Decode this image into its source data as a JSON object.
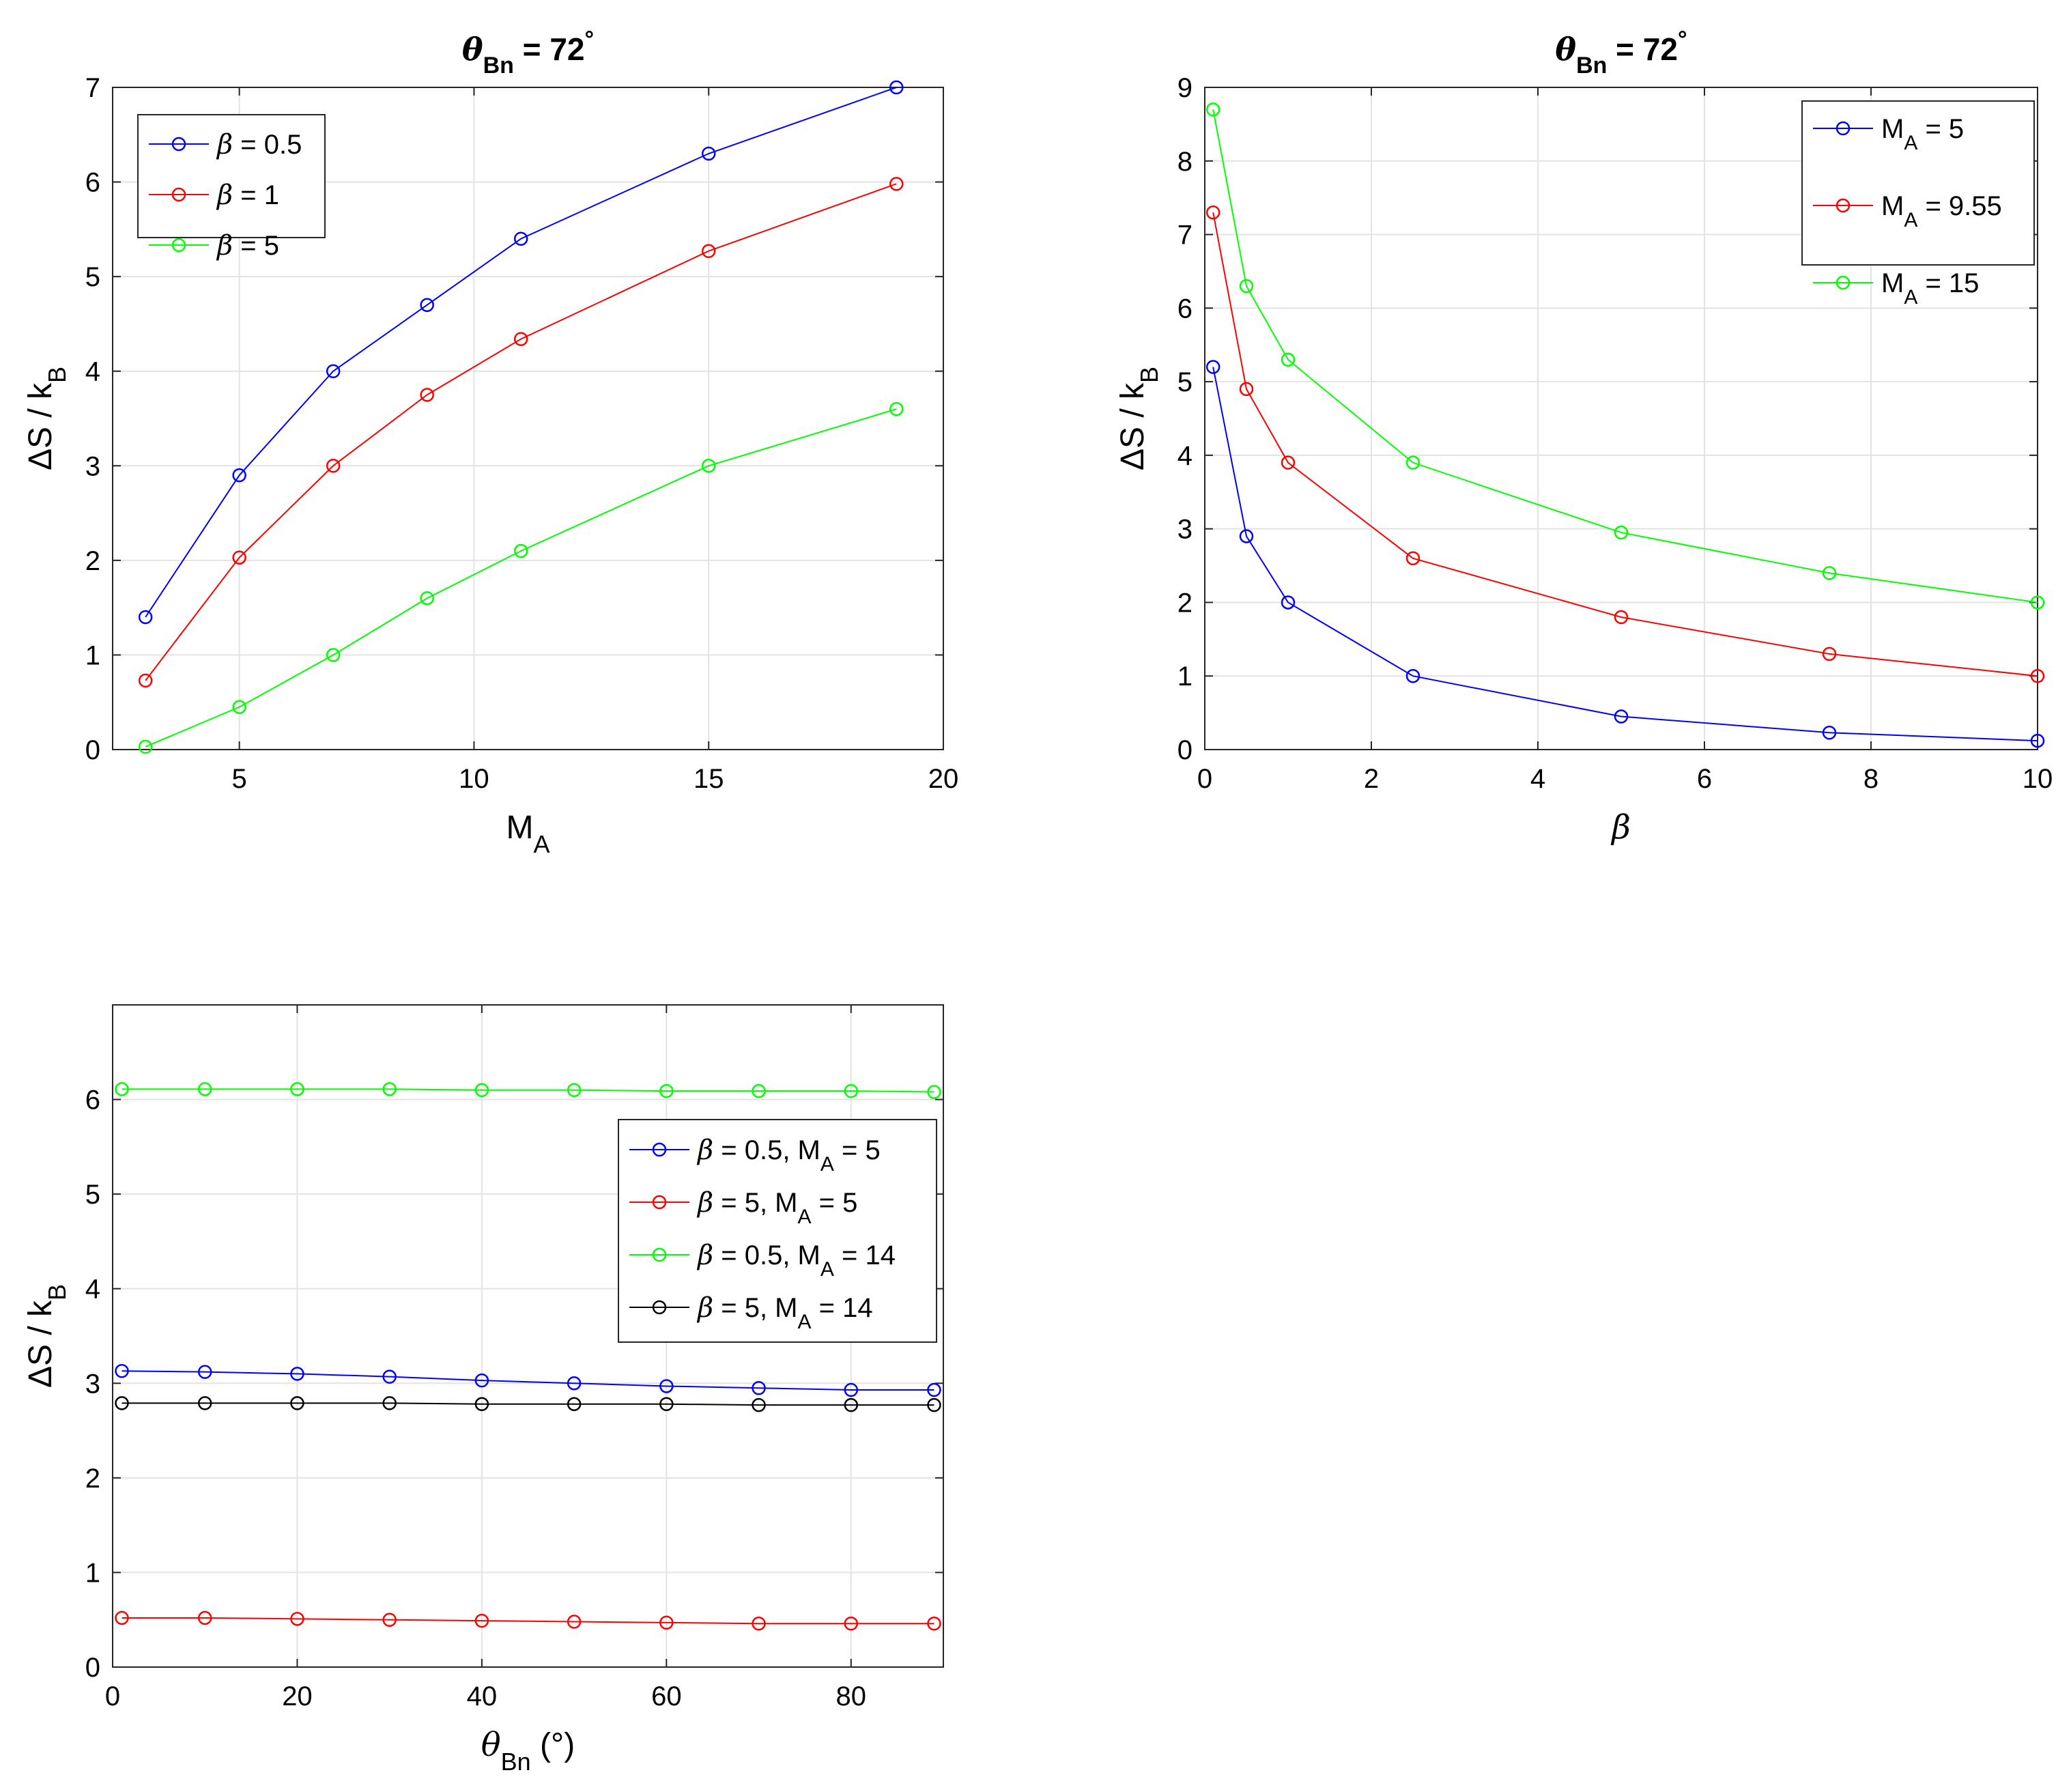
{
  "chart_data": [
    {
      "type": "line",
      "title": "θBn = 72°",
      "title_parts": {
        "symbol": "θ",
        "sub": "Bn",
        "rest": " = 72",
        "sup": "°"
      },
      "xlabel": {
        "main": "M",
        "sub": "A"
      },
      "ylabel": {
        "main": "ΔS / k",
        "sub": "B"
      },
      "xlim": [
        2.3,
        20
      ],
      "ylim": [
        0,
        7
      ],
      "xticks": [
        5,
        10,
        15,
        20
      ],
      "yticks": [
        0,
        1,
        2,
        3,
        4,
        5,
        6,
        7
      ],
      "grid": true,
      "legend_position": "top-left",
      "series": [
        {
          "name": "β = 0.5",
          "label": {
            "sym": "β",
            "rest": " = 0.5"
          },
          "color": "#0000ff",
          "x": [
            3,
            5,
            7,
            9,
            11,
            15,
            19
          ],
          "y": [
            1.4,
            2.9,
            4.0,
            4.7,
            5.4,
            6.3,
            7.0
          ]
        },
        {
          "name": "β = 1",
          "label": {
            "sym": "β",
            "rest": " = 1"
          },
          "color": "#ff0000",
          "x": [
            3,
            5,
            7,
            9,
            11,
            15,
            19
          ],
          "y": [
            0.73,
            2.03,
            3.0,
            3.75,
            4.34,
            5.27,
            5.98
          ]
        },
        {
          "name": "β = 5",
          "label": {
            "sym": "β",
            "rest": " = 5"
          },
          "color": "#00ff00",
          "x": [
            3,
            5,
            7,
            9,
            11,
            15,
            19
          ],
          "y": [
            0.03,
            0.45,
            1.0,
            1.6,
            2.1,
            3.0,
            3.6
          ]
        }
      ]
    },
    {
      "type": "line",
      "title": "θBn = 72°",
      "title_parts": {
        "symbol": "θ",
        "sub": "Bn",
        "rest": " = 72",
        "sup": "°"
      },
      "xlabel": {
        "main": "β",
        "sub": ""
      },
      "ylabel": {
        "main": "ΔS / k",
        "sub": "B"
      },
      "xlim": [
        0,
        10
      ],
      "ylim": [
        0,
        9
      ],
      "xticks": [
        0,
        2,
        4,
        6,
        8,
        10
      ],
      "yticks": [
        0,
        1,
        2,
        3,
        4,
        5,
        6,
        7,
        8,
        9
      ],
      "grid": true,
      "legend_position": "top-right",
      "series": [
        {
          "name": "MA = 5",
          "label": {
            "pre": "M",
            "sub": "A",
            "rest": " = 5"
          },
          "color": "#0000ff",
          "x": [
            0.1,
            0.5,
            1,
            2.5,
            5,
            7.5,
            10
          ],
          "y": [
            5.2,
            2.9,
            2.0,
            1.0,
            0.45,
            0.23,
            0.12
          ]
        },
        {
          "name": "MA = 9.55",
          "label": {
            "pre": "M",
            "sub": "A",
            "rest": " = 9.55"
          },
          "color": "#ff0000",
          "x": [
            0.1,
            0.5,
            1,
            2.5,
            5,
            7.5,
            10
          ],
          "y": [
            7.3,
            4.9,
            3.9,
            2.6,
            1.8,
            1.3,
            1.0
          ]
        },
        {
          "name": "MA = 15",
          "label": {
            "pre": "M",
            "sub": "A",
            "rest": " = 15"
          },
          "color": "#00ff00",
          "x": [
            0.1,
            0.5,
            1,
            2.5,
            5,
            7.5,
            10
          ],
          "y": [
            8.7,
            6.3,
            5.3,
            3.9,
            2.95,
            2.4,
            2.0
          ]
        }
      ]
    },
    {
      "type": "line",
      "title": "",
      "xlabel": {
        "main": "θ",
        "sub": "Bn",
        "rest": " (°)"
      },
      "ylabel": {
        "main": "ΔS / k",
        "sub": "B"
      },
      "xlim": [
        0,
        90
      ],
      "ylim": [
        0,
        7
      ],
      "xticks": [
        0,
        20,
        40,
        60,
        80
      ],
      "yticks": [
        0,
        1,
        2,
        3,
        4,
        5,
        6
      ],
      "grid": true,
      "legend_position": "right",
      "series": [
        {
          "name": "β = 0.5, MA = 5",
          "label": {
            "sym": "β",
            "rest": " = 0.5, M",
            "sub": "A",
            "rest2": " = 5"
          },
          "color": "#0000ff",
          "x": [
            1,
            10,
            20,
            30,
            40,
            50,
            60,
            70,
            80,
            89
          ],
          "y": [
            3.13,
            3.12,
            3.1,
            3.07,
            3.03,
            3.0,
            2.97,
            2.95,
            2.93,
            2.93
          ]
        },
        {
          "name": "β = 5, MA = 5",
          "label": {
            "sym": "β",
            "rest": " = 5, M",
            "sub": "A",
            "rest2": " = 5"
          },
          "color": "#ff0000",
          "x": [
            1,
            10,
            20,
            30,
            40,
            50,
            60,
            70,
            80,
            89
          ],
          "y": [
            0.52,
            0.52,
            0.51,
            0.5,
            0.49,
            0.48,
            0.47,
            0.46,
            0.46,
            0.46
          ]
        },
        {
          "name": "β = 0.5, MA = 14",
          "label": {
            "sym": "β",
            "rest": " = 0.5, M",
            "sub": "A",
            "rest2": " = 14"
          },
          "color": "#00ff00",
          "x": [
            1,
            10,
            20,
            30,
            40,
            50,
            60,
            70,
            80,
            89
          ],
          "y": [
            6.11,
            6.11,
            6.11,
            6.11,
            6.1,
            6.1,
            6.09,
            6.09,
            6.09,
            6.08
          ]
        },
        {
          "name": "β = 5, MA = 14",
          "label": {
            "sym": "β",
            "rest": " = 5, M",
            "sub": "A",
            "rest2": " = 14"
          },
          "color": "#000000",
          "x": [
            1,
            10,
            20,
            30,
            40,
            50,
            60,
            70,
            80,
            89
          ],
          "y": [
            2.79,
            2.79,
            2.79,
            2.79,
            2.78,
            2.78,
            2.78,
            2.77,
            2.77,
            2.77
          ]
        }
      ]
    }
  ]
}
